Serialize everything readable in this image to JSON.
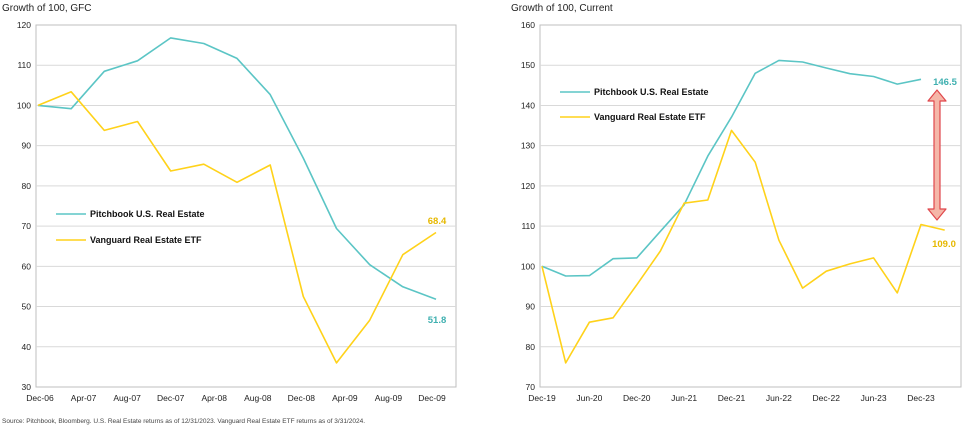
{
  "colors": {
    "pitchbook": "#5bc5c5",
    "vanguard": "#ffd21a",
    "arrow_fill": "#f5b6a8",
    "arrow_stroke": "#e0474c",
    "grid": "#d9d9d9"
  },
  "source_note": "Source: Pitchbook, Bloomberg. U.S. Real Estate returns as of 12/31/2023. Vanguard Real Estate ETF returns as of 3/31/2024.",
  "chart_data": [
    {
      "type": "line",
      "title": "Growth of 100, GFC",
      "xlabel": "",
      "ylabel": "",
      "ylim": [
        30,
        120
      ],
      "yticks": [
        30,
        40,
        50,
        60,
        70,
        80,
        90,
        100,
        110,
        120
      ],
      "xtick_labels": [
        "Dec-06",
        "Apr-07",
        "Aug-07",
        "Dec-07",
        "Apr-08",
        "Aug-08",
        "Dec-08",
        "Apr-09",
        "Aug-09",
        "Dec-09"
      ],
      "x_count": 13,
      "grid": true,
      "legend_position": "middle-left",
      "series": [
        {
          "name": "Pitchbook U.S. Real Estate",
          "values": [
            100,
            99.2,
            108.5,
            111.1,
            116.8,
            115.4,
            111.7,
            102.7,
            86.9,
            69.4,
            60.4,
            54.9,
            51.8
          ],
          "end_label": "51.8"
        },
        {
          "name": "Vanguard Real Estate ETF",
          "values": [
            100,
            103.4,
            93.8,
            96.0,
            83.7,
            85.4,
            80.9,
            85.2,
            52.5,
            36.0,
            46.6,
            62.9,
            68.4
          ],
          "end_label": "68.4"
        }
      ]
    },
    {
      "type": "line",
      "title": "Growth of 100, Current",
      "xlabel": "",
      "ylabel": "",
      "ylim": [
        70,
        160
      ],
      "yticks": [
        70,
        80,
        90,
        100,
        110,
        120,
        130,
        140,
        150,
        160
      ],
      "xtick_labels": [
        "Dec-19",
        "Jun-20",
        "Dec-20",
        "Jun-21",
        "Dec-21",
        "Jun-22",
        "Dec-22",
        "Jun-23",
        "Dec-23"
      ],
      "grid": true,
      "legend_position": "top-left",
      "annotation": "double-headed arrow spanning the gap between 146.5 and 109.0",
      "series": [
        {
          "name": "Pitchbook U.S. Real Estate",
          "x": [
            0,
            0.5,
            1,
            1.5,
            2,
            2.5,
            3,
            3.5,
            4,
            4.5,
            5,
            5.5,
            6,
            6.5,
            7,
            7.5,
            8
          ],
          "values": [
            100,
            97.6,
            97.7,
            101.9,
            102.1,
            108.7,
            115.3,
            127.4,
            137.1,
            148.0,
            151.2,
            150.8,
            149.3,
            147.9,
            147.2,
            145.3,
            146.5
          ],
          "end_label": "146.5"
        },
        {
          "name": "Vanguard Real Estate ETF",
          "x": [
            0,
            0.5,
            1,
            1.5,
            2,
            2.5,
            3,
            3.5,
            4,
            4.5,
            5,
            5.5,
            6,
            6.5,
            7,
            7.5,
            8,
            8.5
          ],
          "values": [
            100,
            76.0,
            86.1,
            87.2,
            95.4,
            103.8,
            115.7,
            116.5,
            133.8,
            125.9,
            106.5,
            94.6,
            98.8,
            100.6,
            102.1,
            93.4,
            110.4,
            109.0
          ],
          "end_label": "109.0"
        }
      ]
    }
  ]
}
